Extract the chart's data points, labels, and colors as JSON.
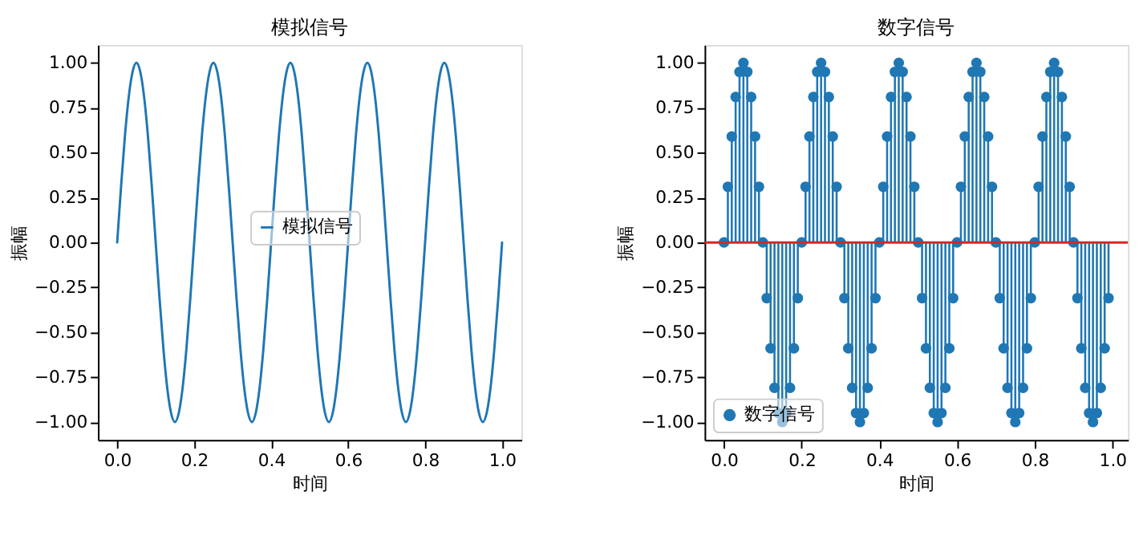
{
  "chart_data": [
    {
      "type": "line",
      "title": "模拟信号",
      "xlabel": "时间",
      "ylabel": "振幅",
      "grid": false,
      "legend": "center",
      "xlim": [
        -0.05,
        1.05
      ],
      "ylim": [
        -1.1,
        1.1
      ],
      "xticks": [
        {
          "value": 0,
          "label": "0.0"
        },
        {
          "value": 0.2,
          "label": "0.2"
        },
        {
          "value": 0.4,
          "label": "0.4"
        },
        {
          "value": 0.6,
          "label": "0.6"
        },
        {
          "value": 0.8,
          "label": "0.8"
        },
        {
          "value": 1,
          "label": "1.0"
        }
      ],
      "yticks": [
        {
          "value": -1,
          "label": "−1.00"
        },
        {
          "value": -0.75,
          "label": "−0.75"
        },
        {
          "value": -0.5,
          "label": "−0.50"
        },
        {
          "value": -0.25,
          "label": "−0.25"
        },
        {
          "value": 0,
          "label": "0.00"
        },
        {
          "value": 0.25,
          "label": "0.25"
        },
        {
          "value": 0.5,
          "label": "0.50"
        },
        {
          "value": 0.75,
          "label": "0.75"
        },
        {
          "value": 1,
          "label": "1.00"
        }
      ],
      "series": [
        {
          "name": "模拟信号",
          "color": "#1f77b4",
          "line_style": "solid",
          "x": [
            0,
            0.01,
            0.02,
            0.03,
            0.04,
            0.05,
            0.06,
            0.07,
            0.08,
            0.09,
            0.1,
            0.11,
            0.12,
            0.13,
            0.14,
            0.15,
            0.16,
            0.17,
            0.18,
            0.19,
            0.2,
            0.21,
            0.22,
            0.23,
            0.24,
            0.25,
            0.26,
            0.27,
            0.28,
            0.29,
            0.3,
            0.31,
            0.32,
            0.33,
            0.34,
            0.35,
            0.36,
            0.37,
            0.38,
            0.39,
            0.4,
            0.41,
            0.42,
            0.43,
            0.44,
            0.45,
            0.46,
            0.47,
            0.48,
            0.49,
            0.5,
            0.51,
            0.52,
            0.53,
            0.54,
            0.55,
            0.56,
            0.57,
            0.58,
            0.59,
            0.6,
            0.61,
            0.62,
            0.63,
            0.64,
            0.65,
            0.66,
            0.67,
            0.68,
            0.69,
            0.7,
            0.71,
            0.72,
            0.73,
            0.74,
            0.75,
            0.76,
            0.77,
            0.78,
            0.79,
            0.8,
            0.81,
            0.82,
            0.83,
            0.84,
            0.85,
            0.86,
            0.87,
            0.88,
            0.89,
            0.9,
            0.91,
            0.92,
            0.93,
            0.94,
            0.95,
            0.96,
            0.97,
            0.98,
            0.99,
            1
          ],
          "values": [
            0,
            0.31,
            0.59,
            0.81,
            0.95,
            1,
            0.95,
            0.81,
            0.59,
            0.31,
            0,
            -0.31,
            -0.59,
            -0.81,
            -0.95,
            -1,
            -0.95,
            -0.81,
            -0.59,
            -0.31,
            0,
            0.31,
            0.59,
            0.81,
            0.95,
            1,
            0.95,
            0.81,
            0.59,
            0.31,
            0,
            -0.31,
            -0.59,
            -0.81,
            -0.95,
            -1,
            -0.95,
            -0.81,
            -0.59,
            -0.31,
            0,
            0.31,
            0.59,
            0.81,
            0.95,
            1,
            0.95,
            0.81,
            0.59,
            0.31,
            0,
            -0.31,
            -0.59,
            -0.81,
            -0.95,
            -1,
            -0.95,
            -0.81,
            -0.59,
            -0.31,
            0,
            0.31,
            0.59,
            0.81,
            0.95,
            1,
            0.95,
            0.81,
            0.59,
            0.31,
            0,
            -0.31,
            -0.59,
            -0.81,
            -0.95,
            -1,
            -0.95,
            -0.81,
            -0.59,
            -0.31,
            0,
            0.31,
            0.59,
            0.81,
            0.95,
            1,
            0.95,
            0.81,
            0.59,
            0.31,
            0,
            -0.31,
            -0.59,
            -0.81,
            -0.95,
            -1,
            -0.95,
            -0.81,
            -0.59,
            -0.31,
            0
          ]
        }
      ]
    },
    {
      "type": "lollipop",
      "title": "数字信号",
      "xlabel": "时间",
      "ylabel": "振幅",
      "grid": false,
      "legend": "bottom left",
      "marker": "circle",
      "xlim": [
        -0.05,
        1.04
      ],
      "ylim": [
        -1.1,
        1.1
      ],
      "xticks": [
        {
          "value": 0,
          "label": "0.0"
        },
        {
          "value": 0.2,
          "label": "0.2"
        },
        {
          "value": 0.4,
          "label": "0.4"
        },
        {
          "value": 0.6,
          "label": "0.6"
        },
        {
          "value": 0.8,
          "label": "0.8"
        },
        {
          "value": 1,
          "label": "1.0"
        }
      ],
      "yticks": [
        {
          "value": -1,
          "label": "−1.00"
        },
        {
          "value": -0.75,
          "label": "−0.75"
        },
        {
          "value": -0.5,
          "label": "−0.50"
        },
        {
          "value": -0.25,
          "label": "−0.25"
        },
        {
          "value": 0,
          "label": "0.00"
        },
        {
          "value": 0.25,
          "label": "0.25"
        },
        {
          "value": 0.5,
          "label": "0.50"
        },
        {
          "value": 0.75,
          "label": "0.75"
        },
        {
          "value": 1,
          "label": "1.00"
        }
      ],
      "ref_lines": [
        {
          "axis": "y",
          "value": 0,
          "color": "#d62728"
        }
      ],
      "series": [
        {
          "name": "数字信号",
          "color": "#1f77b4",
          "x": [
            0,
            0.01,
            0.02,
            0.03,
            0.04,
            0.05,
            0.06,
            0.07,
            0.08,
            0.09,
            0.1,
            0.11,
            0.12,
            0.13,
            0.14,
            0.15,
            0.16,
            0.17,
            0.18,
            0.19,
            0.2,
            0.21,
            0.22,
            0.23,
            0.24,
            0.25,
            0.26,
            0.27,
            0.28,
            0.29,
            0.3,
            0.31,
            0.32,
            0.33,
            0.34,
            0.35,
            0.36,
            0.37,
            0.38,
            0.39,
            0.4,
            0.41,
            0.42,
            0.43,
            0.44,
            0.45,
            0.46,
            0.47,
            0.48,
            0.49,
            0.5,
            0.51,
            0.52,
            0.53,
            0.54,
            0.55,
            0.56,
            0.57,
            0.58,
            0.59,
            0.6,
            0.61,
            0.62,
            0.63,
            0.64,
            0.65,
            0.66,
            0.67,
            0.68,
            0.69,
            0.7,
            0.71,
            0.72,
            0.73,
            0.74,
            0.75,
            0.76,
            0.77,
            0.78,
            0.79,
            0.8,
            0.81,
            0.82,
            0.83,
            0.84,
            0.85,
            0.86,
            0.87,
            0.88,
            0.89,
            0.9,
            0.91,
            0.92,
            0.93,
            0.94,
            0.95,
            0.96,
            0.97,
            0.98,
            0.99
          ],
          "values": [
            0,
            0.31,
            0.59,
            0.81,
            0.95,
            1,
            0.95,
            0.81,
            0.59,
            0.31,
            0,
            -0.31,
            -0.59,
            -0.81,
            -0.95,
            -1,
            -0.95,
            -0.81,
            -0.59,
            -0.31,
            0,
            0.31,
            0.59,
            0.81,
            0.95,
            1,
            0.95,
            0.81,
            0.59,
            0.31,
            0,
            -0.31,
            -0.59,
            -0.81,
            -0.95,
            -1,
            -0.95,
            -0.81,
            -0.59,
            -0.31,
            0,
            0.31,
            0.59,
            0.81,
            0.95,
            1,
            0.95,
            0.81,
            0.59,
            0.31,
            0,
            -0.31,
            -0.59,
            -0.81,
            -0.95,
            -1,
            -0.95,
            -0.81,
            -0.59,
            -0.31,
            0,
            0.31,
            0.59,
            0.81,
            0.95,
            1,
            0.95,
            0.81,
            0.59,
            0.31,
            0,
            -0.31,
            -0.59,
            -0.81,
            -0.95,
            -1,
            -0.95,
            -0.81,
            -0.59,
            -0.31,
            0,
            0.31,
            0.59,
            0.81,
            0.95,
            1,
            0.95,
            0.81,
            0.59,
            0.31,
            0,
            -0.31,
            -0.59,
            -0.81,
            -0.95,
            -1,
            -0.95,
            -0.81,
            -0.59,
            -0.31
          ]
        }
      ]
    }
  ]
}
